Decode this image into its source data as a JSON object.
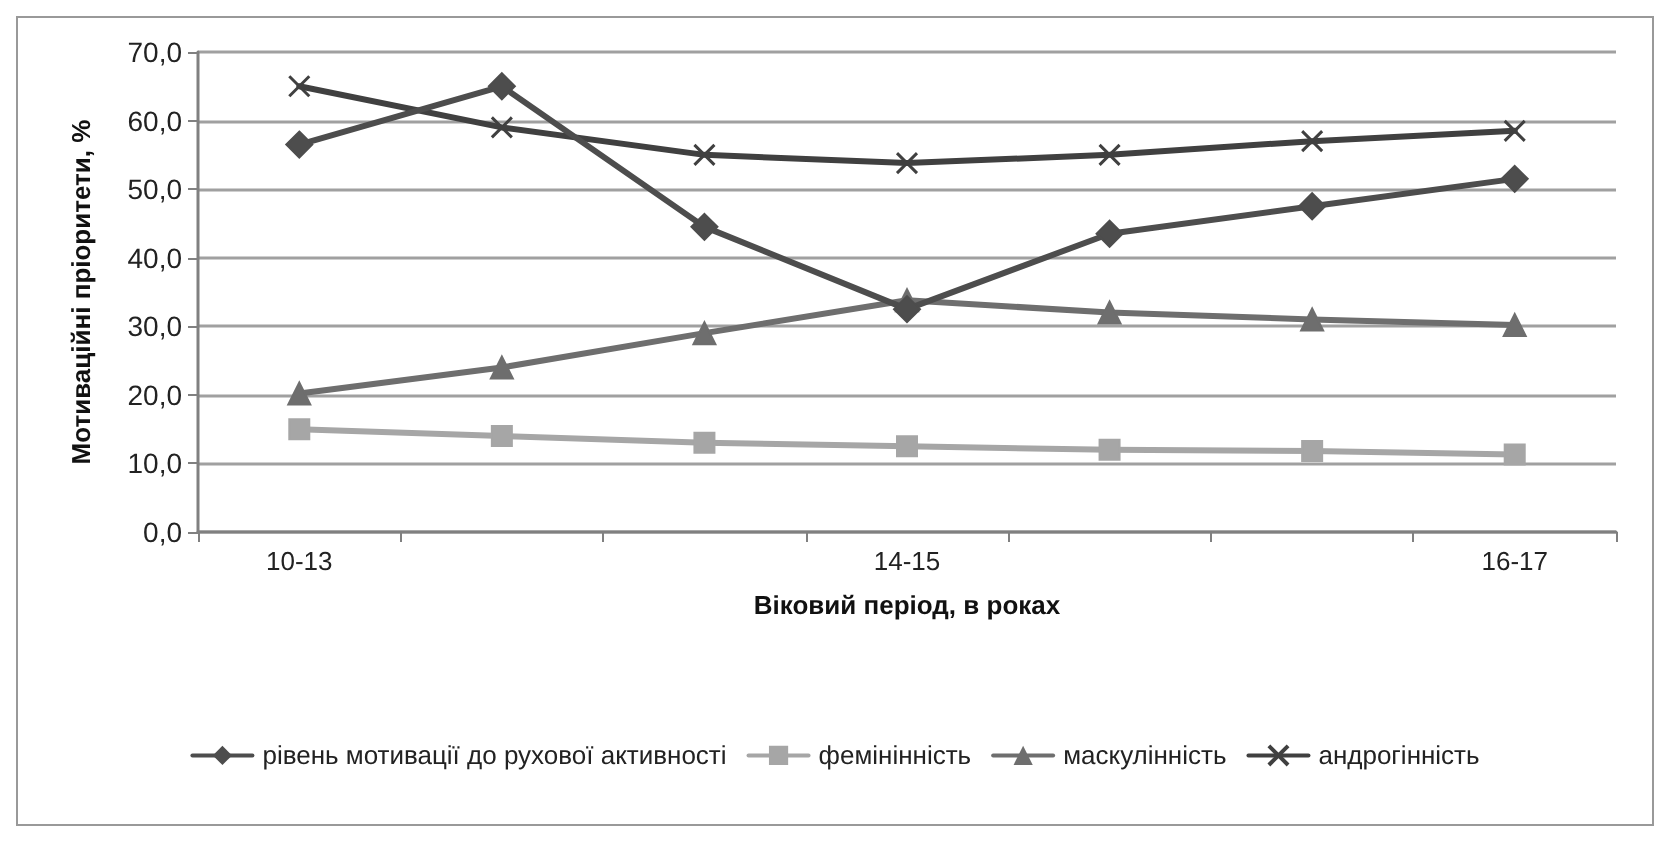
{
  "chart_data": {
    "type": "line",
    "xlabel": "Віковий період, в роках",
    "ylabel": "Мотиваційні пріоритети, %",
    "categories": [
      "10-13",
      null,
      null,
      "14-15",
      null,
      null,
      "16-17"
    ],
    "series": [
      {
        "name": "рівень мотивації до рухової активності",
        "color": "#4d4d4d",
        "marker": "diamond",
        "values": [
          56.5,
          65,
          44.5,
          32.5,
          43.5,
          47.5,
          51.5
        ]
      },
      {
        "name": "фемінінність",
        "color": "#a6a6a6",
        "marker": "square",
        "values": [
          15,
          14,
          13,
          12.5,
          12,
          11.8,
          11.3
        ]
      },
      {
        "name": "маскулінність",
        "color": "#6e6e6e",
        "marker": "triangle",
        "values": [
          20.2,
          24,
          29,
          33.8,
          32,
          31,
          30.2
        ]
      },
      {
        "name": "андрогінність",
        "color": "#404040",
        "marker": "cross",
        "values": [
          65,
          59,
          55,
          53.8,
          55,
          57,
          58.5
        ]
      }
    ],
    "ylim": [
      0,
      70
    ],
    "yticks": [
      {
        "value": 0,
        "label": "0,0"
      },
      {
        "value": 10,
        "label": "10,0"
      },
      {
        "value": 20,
        "label": "20,0"
      },
      {
        "value": 30,
        "label": "30,0"
      },
      {
        "value": 40,
        "label": "40,0"
      },
      {
        "value": 50,
        "label": "50,0"
      },
      {
        "value": 60,
        "label": "60,0"
      },
      {
        "value": 70,
        "label": "70,0"
      }
    ],
    "grid": "y",
    "legend": "bottom",
    "line_style": "solid"
  }
}
